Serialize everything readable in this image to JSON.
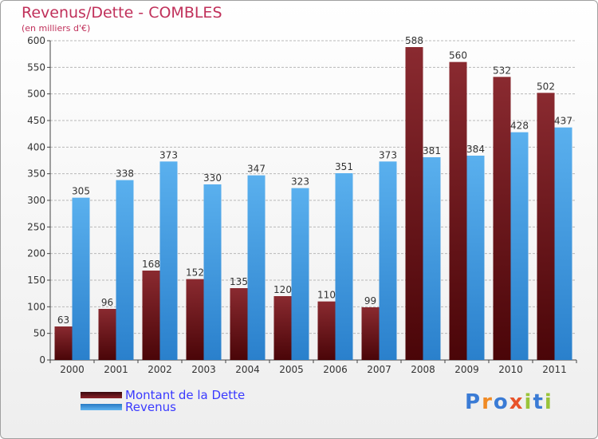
{
  "title": "Revenus/Dette - COMBLES",
  "subtitle": "(en milliers d'€)",
  "colors": {
    "dette": "#7a1a20",
    "revenus": "#4aa3e8",
    "title": "#c0305a",
    "legend_text": "#3a3aff"
  },
  "legend": {
    "dette_label": "Montant de la Dette",
    "revenus_label": "Revenus"
  },
  "logo": {
    "text": "Proxiti"
  },
  "chart_data": {
    "type": "bar",
    "categories": [
      "2000",
      "2001",
      "2002",
      "2003",
      "2004",
      "2005",
      "2006",
      "2007",
      "2008",
      "2009",
      "2010",
      "2011"
    ],
    "series": [
      {
        "name": "Montant de la Dette",
        "values": [
          63,
          96,
          168,
          152,
          135,
          120,
          110,
          99,
          588,
          560,
          532,
          502
        ]
      },
      {
        "name": "Revenus",
        "values": [
          305,
          338,
          373,
          330,
          347,
          323,
          351,
          373,
          381,
          384,
          428,
          437
        ]
      }
    ],
    "ylim": [
      0,
      600
    ],
    "yticks": [
      0,
      50,
      100,
      150,
      200,
      250,
      300,
      350,
      400,
      450,
      500,
      550,
      600
    ],
    "grid": true,
    "legend_position": "bottom-left"
  }
}
